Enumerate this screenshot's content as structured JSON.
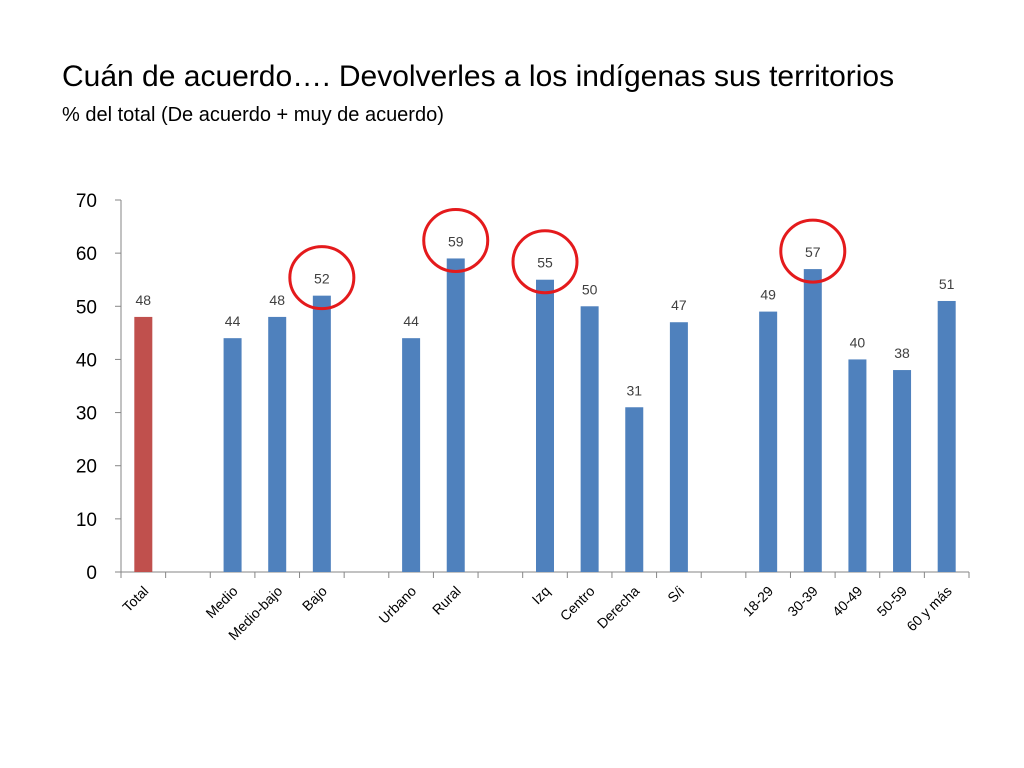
{
  "slide": {
    "title": "Cuán de acuerdo…. Devolverles a los indígenas sus territorios",
    "subtitle": "% del total (De acuerdo + muy de acuerdo)"
  },
  "colors": {
    "bar_total": "#c0504d",
    "bar_default": "#4f81bd",
    "highlight_circle": "#e41a1c",
    "axis": "#868686"
  },
  "chart_data": {
    "type": "bar",
    "title": "",
    "xlabel": "",
    "ylabel": "",
    "ylim": [
      0,
      70
    ],
    "yticks": [
      0,
      10,
      20,
      30,
      40,
      50,
      60,
      70
    ],
    "grid": false,
    "legend": "none",
    "categories": [
      "Total",
      "",
      "Medio",
      "Medio-bajo",
      "Bajo",
      "",
      "Urbano",
      "Rural",
      "",
      "Izq",
      "Centro",
      "Derecha",
      "S/i",
      "",
      "18-29",
      "30-39",
      "40-49",
      "50-59",
      "60 y más"
    ],
    "values": [
      48,
      null,
      44,
      48,
      52,
      null,
      44,
      59,
      null,
      55,
      50,
      31,
      47,
      null,
      49,
      57,
      40,
      38,
      51
    ],
    "bar_colors": [
      "total",
      null,
      "default",
      "default",
      "default",
      null,
      "default",
      "default",
      null,
      "default",
      "default",
      "default",
      "default",
      null,
      "default",
      "default",
      "default",
      "default",
      "default"
    ],
    "highlighted": [
      "Bajo",
      "Rural",
      "Izq",
      "30-39"
    ]
  }
}
